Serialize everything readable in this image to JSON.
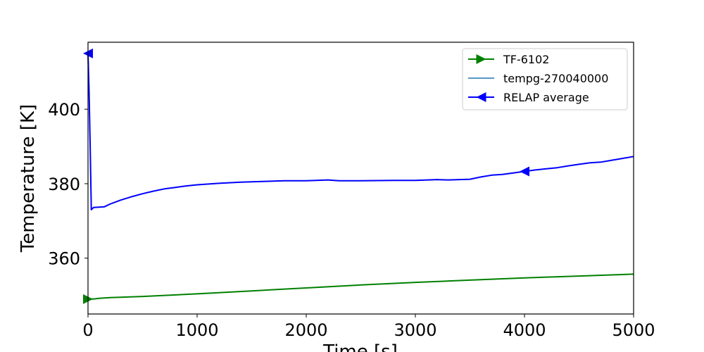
{
  "chart_data": {
    "type": "line",
    "title": "",
    "xlabel": "Time [s]",
    "ylabel": "Temperature [K]",
    "xlim": [
      0,
      5000
    ],
    "ylim": [
      345,
      418
    ],
    "xticks": [
      0,
      1000,
      2000,
      3000,
      4000,
      5000
    ],
    "xtick_labels": [
      "0",
      "1000",
      "2000",
      "3000",
      "4000",
      "5000"
    ],
    "yticks": [
      360,
      380,
      400
    ],
    "ytick_labels": [
      "360",
      "380",
      "400"
    ],
    "grid": false,
    "legend_position": "top-right",
    "series": [
      {
        "name": "TF-6102",
        "color": "#008000",
        "marker": "triangle-right",
        "marker_every": "start",
        "x": [
          0,
          50,
          100,
          200,
          500,
          1000,
          1500,
          2000,
          2500,
          3000,
          3500,
          4000,
          4500,
          5000
        ],
        "y": [
          349.0,
          349.0,
          349.2,
          349.4,
          349.7,
          350.4,
          351.2,
          352.0,
          352.8,
          353.5,
          354.1,
          354.7,
          355.2,
          355.7
        ]
      },
      {
        "name": "tempg-270040000",
        "color": "#1f77b4",
        "marker": "none",
        "x": [
          0,
          10,
          20,
          30,
          50,
          100,
          150,
          200,
          300,
          400,
          500,
          600,
          700,
          800,
          900,
          1000,
          1200,
          1400,
          1600,
          1800,
          2000,
          2200,
          2300,
          2500,
          2800,
          3000,
          3200,
          3300,
          3500,
          3600,
          3700,
          3800,
          3900,
          4000,
          4100,
          4200,
          4300,
          4400,
          4500,
          4600,
          4700,
          4800,
          4900,
          5000
        ],
        "y": [
          415.0,
          405.0,
          390.0,
          373.0,
          373.6,
          373.7,
          373.8,
          374.5,
          375.6,
          376.5,
          377.3,
          378.0,
          378.6,
          379.0,
          379.4,
          379.7,
          380.1,
          380.4,
          380.6,
          380.8,
          380.8,
          381.0,
          380.8,
          380.8,
          380.9,
          380.9,
          381.1,
          381.0,
          381.2,
          381.8,
          382.3,
          382.5,
          382.9,
          383.3,
          383.7,
          384.0,
          384.3,
          384.8,
          385.2,
          385.6,
          385.8,
          386.3,
          386.8,
          387.3
        ]
      },
      {
        "name": "RELAP average",
        "color": "#0000ff",
        "marker": "triangle-left",
        "marker_points": [
          [
            0,
            415.0
          ],
          [
            4000,
            383.3
          ]
        ],
        "x": [
          0,
          10,
          20,
          30,
          50,
          100,
          150,
          200,
          300,
          400,
          500,
          600,
          700,
          800,
          900,
          1000,
          1200,
          1400,
          1600,
          1800,
          2000,
          2200,
          2300,
          2500,
          2800,
          3000,
          3200,
          3300,
          3500,
          3600,
          3700,
          3800,
          3900,
          4000,
          4100,
          4200,
          4300,
          4400,
          4500,
          4600,
          4700,
          4800,
          4900,
          5000
        ],
        "y": [
          415.0,
          405.0,
          390.0,
          373.0,
          373.6,
          373.7,
          373.8,
          374.5,
          375.6,
          376.5,
          377.3,
          378.0,
          378.6,
          379.0,
          379.4,
          379.7,
          380.1,
          380.4,
          380.6,
          380.8,
          380.8,
          381.0,
          380.8,
          380.8,
          380.9,
          380.9,
          381.1,
          381.0,
          381.2,
          381.8,
          382.3,
          382.5,
          382.9,
          383.3,
          383.7,
          384.0,
          384.3,
          384.8,
          385.2,
          385.6,
          385.8,
          386.3,
          386.8,
          387.3
        ]
      }
    ]
  }
}
